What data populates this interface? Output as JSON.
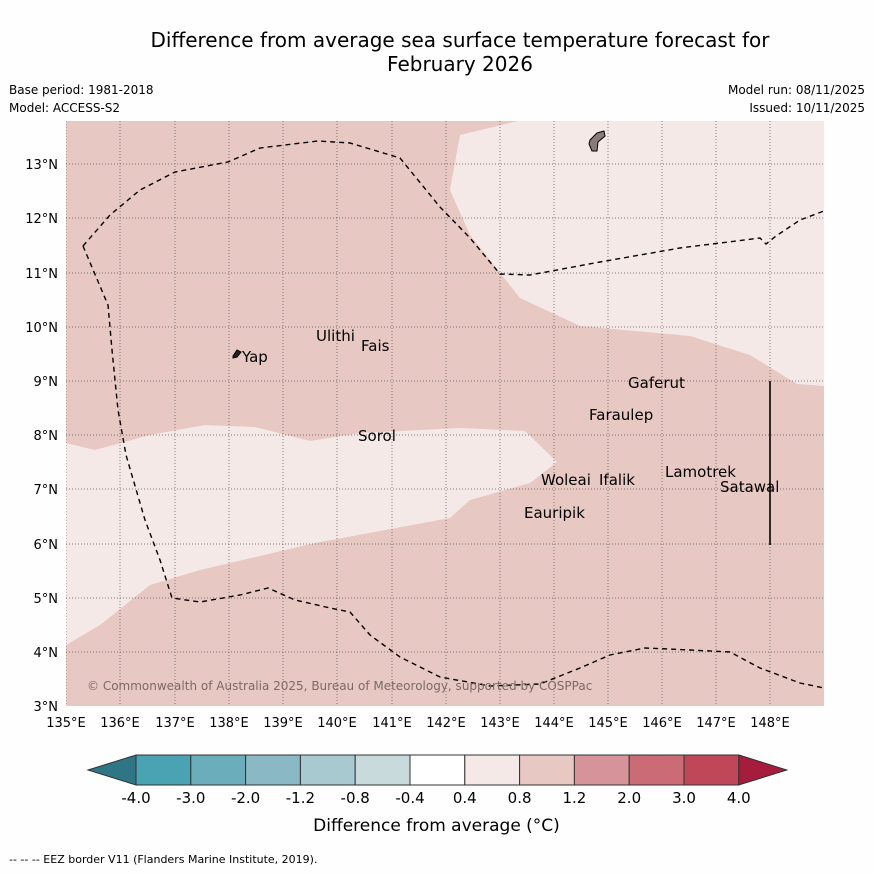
{
  "title_line1": "Difference from average sea surface temperature forecast for",
  "title_line2": "February 2026",
  "base_period": "Base period: 1981-2018",
  "model": "Model: ACCESS-S2",
  "model_run": "Model run: 08/11/2025",
  "issued": "Issued: 10/11/2025",
  "lat_labels": [
    "13°N",
    "12°N",
    "11°N",
    "10°N",
    "9°N",
    "8°N",
    "7°N",
    "6°N",
    "5°N",
    "4°N",
    "3°N"
  ],
  "lon_labels": [
    "135°E",
    "136°E",
    "137°E",
    "138°E",
    "139°E",
    "140°E",
    "141°E",
    "142°E",
    "143°E",
    "144°E",
    "145°E",
    "146°E",
    "147°E",
    "148°E"
  ],
  "places": [
    {
      "name": "Ulithi"
    },
    {
      "name": "Fais"
    },
    {
      "name": "Yap"
    },
    {
      "name": "Gaferut"
    },
    {
      "name": "Faraulep"
    },
    {
      "name": "Sorol"
    },
    {
      "name": "Woleai"
    },
    {
      "name": "Ifalik"
    },
    {
      "name": "Lamotrek"
    },
    {
      "name": "Satawal"
    },
    {
      "name": "Eauripik"
    }
  ],
  "copyright": "© Commonwealth of Australia 2025, Bureau of Meteorology, supported by COSPPac",
  "colorbar": {
    "ticks": [
      "-4.0",
      "-3.0",
      "-2.0",
      "-1.2",
      "-0.8",
      "-0.4",
      "0.4",
      "0.8",
      "1.2",
      "2.0",
      "3.0",
      "4.0"
    ],
    "colors": [
      "#2e7585",
      "#4aa3b3",
      "#6badbb",
      "#8ab8c4",
      "#a9c9d0",
      "#c9dadd",
      "#ffffff",
      "#f5e9e7",
      "#e8c8c3",
      "#d6949a",
      "#cb6b76",
      "#c04758",
      "#a51c3c"
    ],
    "label": "Difference from average (°C)"
  },
  "footer": "--  --  -- EEZ border V11 (Flanders Marine Institute, 2019)."
}
